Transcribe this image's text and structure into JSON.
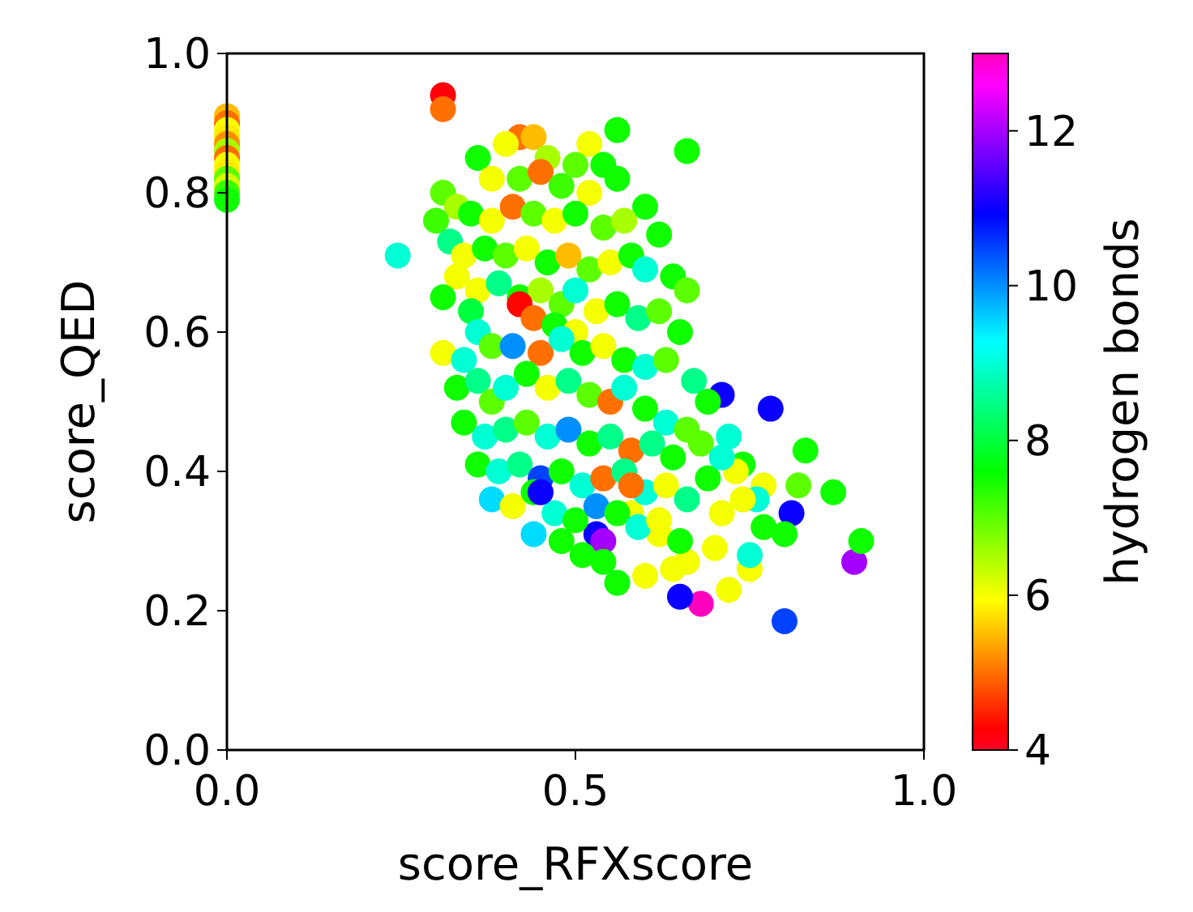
{
  "chart_data": {
    "type": "scatter",
    "xlabel": "score_RFXscore",
    "ylabel": "score_QED",
    "clabel": "hydrogen bonds",
    "xlim": [
      0,
      1
    ],
    "xticks": [
      {
        "value": 0,
        "label": "0.0"
      },
      0.5,
      {
        "value": 1,
        "label": "1.0"
      }
    ],
    "ylim": [
      0,
      1
    ],
    "yticks": [
      {
        "value": 0,
        "label": "0.0"
      },
      0.2,
      0.4,
      0.6,
      0.8,
      {
        "value": 1,
        "label": "1.0"
      }
    ],
    "clim": [
      4,
      13
    ],
    "cticks": [
      4,
      6,
      8,
      10,
      12
    ],
    "grid": false,
    "marker": "circle",
    "x": [
      0.31,
      0.31,
      0,
      0,
      0,
      0,
      0,
      0,
      0,
      0,
      0,
      0,
      0,
      0,
      0,
      0.245,
      0.68,
      0.9,
      0.8,
      0.65,
      0.53,
      0.81,
      0.78,
      0.71,
      0.54,
      0.58,
      0.62,
      0.66,
      0.7,
      0.72,
      0.75,
      0.77,
      0.91,
      0.87,
      0.83,
      0.82,
      0.8,
      0.77,
      0.75,
      0.76,
      0.42,
      0.44,
      0.4,
      0.56,
      0.52,
      0.66,
      0.36,
      0.46,
      0.5,
      0.54,
      0.38,
      0.42,
      0.45,
      0.48,
      0.52,
      0.56,
      0.6,
      0.31,
      0.33,
      0.35,
      0.38,
      0.41,
      0.44,
      0.47,
      0.5,
      0.54,
      0.57,
      0.62,
      0.3,
      0.32,
      0.34,
      0.37,
      0.4,
      0.43,
      0.46,
      0.49,
      0.52,
      0.55,
      0.58,
      0.6,
      0.64,
      0.66,
      0.33,
      0.36,
      0.39,
      0.42,
      0.45,
      0.48,
      0.5,
      0.53,
      0.56,
      0.59,
      0.62,
      0.65,
      0.31,
      0.35,
      0.42,
      0.44,
      0.47,
      0.5,
      0.31,
      0.34,
      0.36,
      0.38,
      0.41,
      0.45,
      0.48,
      0.51,
      0.54,
      0.57,
      0.6,
      0.63,
      0.67,
      0.69,
      0.33,
      0.36,
      0.38,
      0.4,
      0.43,
      0.46,
      0.49,
      0.52,
      0.55,
      0.57,
      0.6,
      0.63,
      0.66,
      0.34,
      0.37,
      0.4,
      0.43,
      0.46,
      0.49,
      0.52,
      0.55,
      0.58,
      0.61,
      0.64,
      0.68,
      0.72,
      0.74,
      0.36,
      0.39,
      0.42,
      0.45,
      0.48,
      0.51,
      0.54,
      0.57,
      0.6,
      0.63,
      0.66,
      0.69,
      0.71,
      0.73,
      0.38,
      0.41,
      0.44,
      0.47,
      0.5,
      0.53,
      0.56,
      0.59,
      0.62,
      0.65,
      0.48,
      0.51,
      0.54,
      0.56,
      0.6,
      0.64,
      0.45,
      0.58,
      0.44,
      0.71,
      0.74
    ],
    "values": [
      0.94,
      0.92,
      0.91,
      0.9,
      0.89,
      0.88,
      0.87,
      0.86,
      0.85,
      0.84,
      0.83,
      0.82,
      0.81,
      0.8,
      0.79,
      0.71,
      0.21,
      0.27,
      0.185,
      0.22,
      0.31,
      0.34,
      0.49,
      0.51,
      0.3,
      0.34,
      0.31,
      0.27,
      0.29,
      0.23,
      0.26,
      0.38,
      0.3,
      0.37,
      0.43,
      0.38,
      0.31,
      0.32,
      0.28,
      0.36,
      0.88,
      0.88,
      0.87,
      0.89,
      0.87,
      0.86,
      0.85,
      0.85,
      0.84,
      0.84,
      0.82,
      0.82,
      0.83,
      0.81,
      0.8,
      0.82,
      0.78,
      0.8,
      0.78,
      0.77,
      0.76,
      0.78,
      0.77,
      0.76,
      0.77,
      0.75,
      0.76,
      0.74,
      0.76,
      0.73,
      0.71,
      0.72,
      0.71,
      0.72,
      0.7,
      0.71,
      0.69,
      0.7,
      0.71,
      0.69,
      0.68,
      0.66,
      0.68,
      0.66,
      0.67,
      0.65,
      0.66,
      0.64,
      0.66,
      0.63,
      0.64,
      0.62,
      0.63,
      0.6,
      0.65,
      0.63,
      0.64,
      0.62,
      0.61,
      0.6,
      0.57,
      0.56,
      0.6,
      0.58,
      0.58,
      0.57,
      0.59,
      0.57,
      0.58,
      0.56,
      0.55,
      0.56,
      0.53,
      0.5,
      0.52,
      0.53,
      0.5,
      0.52,
      0.54,
      0.52,
      0.53,
      0.51,
      0.5,
      0.52,
      0.49,
      0.47,
      0.46,
      0.47,
      0.45,
      0.46,
      0.47,
      0.45,
      0.46,
      0.44,
      0.45,
      0.43,
      0.44,
      0.42,
      0.44,
      0.45,
      0.41,
      0.41,
      0.4,
      0.41,
      0.39,
      0.4,
      0.38,
      0.39,
      0.4,
      0.37,
      0.38,
      0.36,
      0.39,
      0.34,
      0.4,
      0.36,
      0.35,
      0.37,
      0.34,
      0.33,
      0.35,
      0.34,
      0.32,
      0.33,
      0.3,
      0.3,
      0.28,
      0.27,
      0.24,
      0.25,
      0.26,
      0.37,
      0.38,
      0.31,
      0.42,
      0.36
    ],
    "cvalues": [
      4.2,
      5,
      5.5,
      5,
      6,
      5.8,
      5.2,
      6.5,
      5,
      6,
      5.8,
      7,
      6.2,
      7.2,
      7.5,
      9,
      13,
      12,
      10.5,
      11,
      11,
      11,
      11,
      11,
      12,
      6,
      6,
      6,
      6,
      6,
      6,
      6,
      7.5,
      7.5,
      7.5,
      7,
      7.5,
      7.5,
      9,
      9,
      5,
      5.5,
      6,
      7.5,
      6,
      7.5,
      7.5,
      6.5,
      7,
      7.5,
      6,
      7,
      5,
      7.2,
      6,
      7.5,
      7.5,
      7,
      6.5,
      7.5,
      6,
      5,
      7,
      6,
      7.5,
      7,
      6.5,
      7.5,
      7.2,
      8.5,
      6,
      7.5,
      7,
      6,
      7.5,
      5.5,
      7,
      6,
      7.5,
      9,
      7.5,
      7,
      6,
      6,
      8.5,
      7.5,
      6.5,
      7,
      9,
      6,
      7.5,
      8.5,
      7,
      7.5,
      7.5,
      8,
      4.3,
      5,
      7.5,
      6,
      6,
      9,
      9,
      7,
      10,
      5,
      9,
      7.5,
      6,
      7.5,
      9,
      7,
      8.5,
      7.5,
      7.5,
      8.5,
      7,
      9,
      7.5,
      6,
      8.5,
      7,
      5,
      9,
      7.5,
      9,
      7,
      7.5,
      9,
      8.5,
      7,
      9,
      10,
      7.5,
      8.5,
      5,
      8.5,
      7.5,
      7,
      9,
      7.5,
      7.5,
      9,
      8.5,
      10.5,
      7.5,
      9,
      5,
      8.5,
      9,
      6,
      8.5,
      7.5,
      6,
      6,
      9.5,
      6,
      7.5,
      9,
      7.5,
      10,
      7.5,
      9,
      6,
      7.5,
      7.5,
      7.5,
      7.5,
      7.5,
      6,
      6,
      11,
      5,
      9.5,
      9,
      6
    ]
  }
}
